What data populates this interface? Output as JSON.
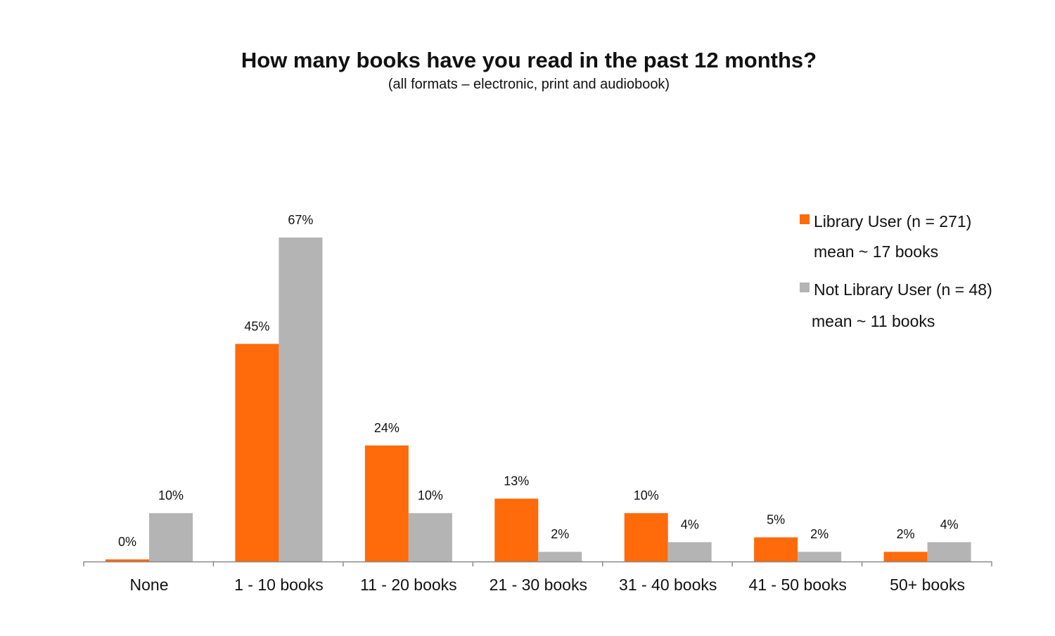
{
  "chart_data": {
    "type": "bar",
    "title": "How many books have you read in the past 12 months?",
    "subtitle": "(all formats – electronic, print and audiobook)",
    "categories": [
      "None",
      "1 - 10 books",
      "11 - 20 books",
      "21 - 30 books",
      "31 - 40 books",
      "41 - 50 books",
      "50+ books"
    ],
    "series": [
      {
        "name": "Library User (n = 271)",
        "note": "mean ~ 17 books",
        "color": "#ff6a0a",
        "values": [
          0,
          45,
          24,
          13,
          10,
          5,
          2
        ],
        "labels": [
          "0%",
          "45%",
          "24%",
          "13%",
          "10%",
          "5%",
          "2%"
        ]
      },
      {
        "name": "Not Library User (n = 48)",
        "note": "mean ~ 11 books",
        "color": "#b4b4b4",
        "values": [
          10,
          67,
          10,
          2,
          4,
          2,
          4
        ],
        "labels": [
          "10%",
          "67%",
          "10%",
          "2%",
          "4%",
          "2%",
          "4%"
        ]
      }
    ],
    "ylim": [
      0,
      67
    ],
    "grid": false,
    "legend_position": "top-right"
  }
}
